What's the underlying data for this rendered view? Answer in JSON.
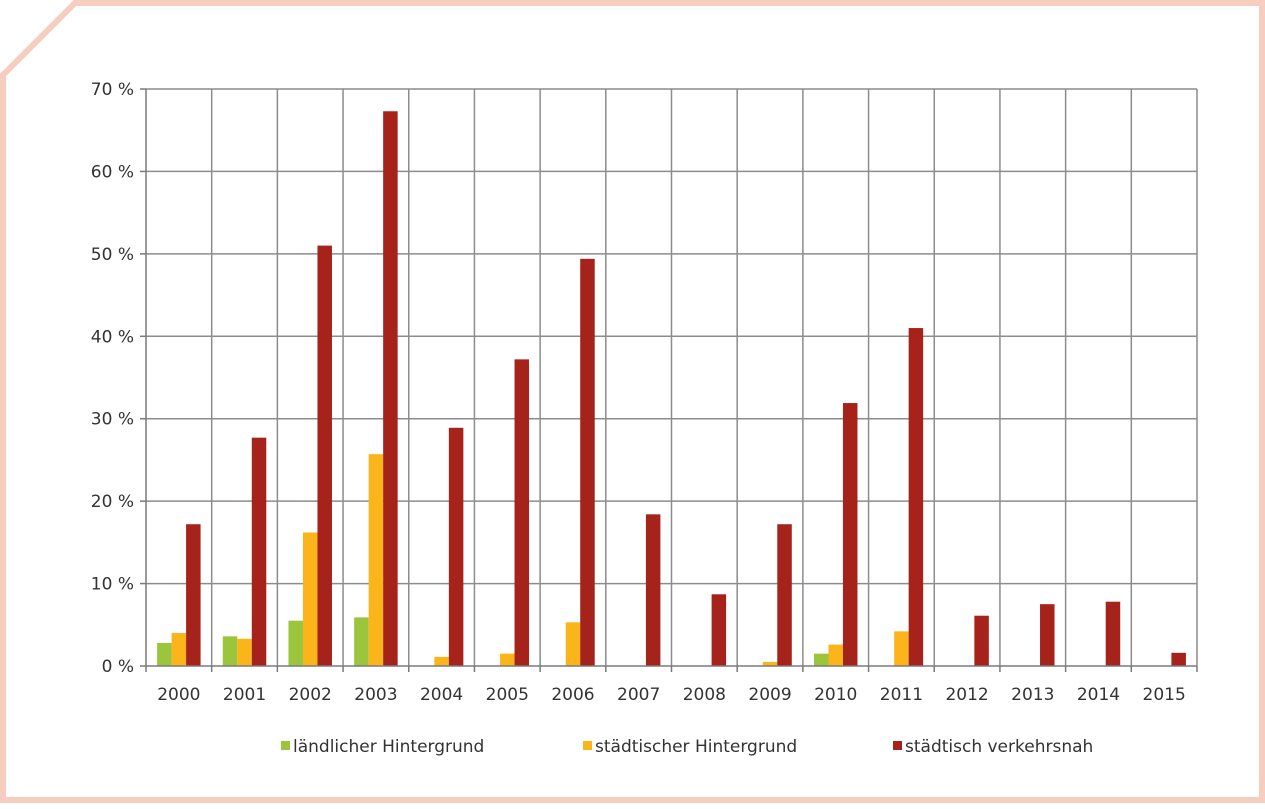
{
  "colors": {
    "frame": "#f6cdbf",
    "grid": "#8c8c8c",
    "axis": "#7a7a7a",
    "text": "#333333"
  },
  "chart_data": {
    "type": "bar",
    "title": "",
    "xlabel": "",
    "ylabel": "",
    "ylim": [
      0,
      70
    ],
    "y_ticks": [
      0,
      10,
      20,
      30,
      40,
      50,
      60,
      70
    ],
    "y_tick_labels": [
      "0 %",
      "10 %",
      "20 %",
      "30 %",
      "40 %",
      "50 %",
      "60 %",
      "70 %"
    ],
    "grid": true,
    "legend_position": "bottom",
    "categories": [
      "2000",
      "2001",
      "2002",
      "2003",
      "2004",
      "2005",
      "2006",
      "2007",
      "2008",
      "2009",
      "2010",
      "2011",
      "2012",
      "2013",
      "2014",
      "2015"
    ],
    "series": [
      {
        "name": "ländlicher Hintergrund",
        "color": "#9bc53d",
        "values": [
          2.8,
          3.6,
          5.5,
          5.9,
          0,
          0,
          0,
          0,
          0,
          0,
          1.5,
          0,
          0,
          0,
          0,
          0
        ]
      },
      {
        "name": "städtischer Hintergrund",
        "color": "#fbb41a",
        "values": [
          4.0,
          3.3,
          16.2,
          25.7,
          1.1,
          1.5,
          5.3,
          0,
          0,
          0.5,
          2.6,
          4.2,
          0,
          0,
          0,
          0
        ]
      },
      {
        "name": "städtisch verkehrsnah",
        "color": "#a5231a",
        "values": [
          17.2,
          27.7,
          51.0,
          67.3,
          28.9,
          37.2,
          49.4,
          18.4,
          8.7,
          17.2,
          31.9,
          41.0,
          6.1,
          7.5,
          7.8,
          1.6
        ]
      }
    ]
  }
}
